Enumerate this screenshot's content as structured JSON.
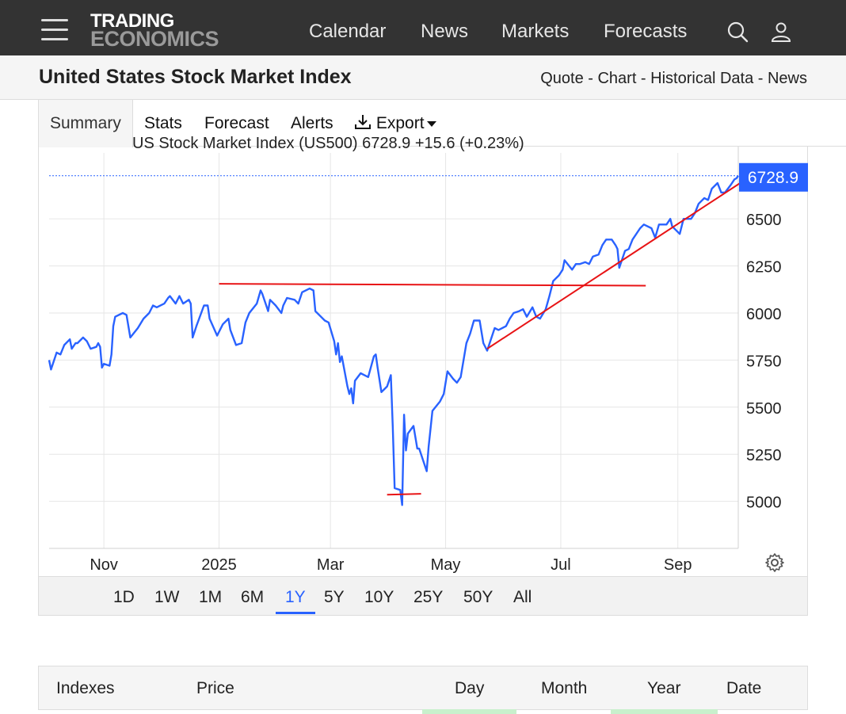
{
  "nav": {
    "logo_line1": "TRADING",
    "logo_line2": "ECONOMICS",
    "links": [
      "Calendar",
      "News",
      "Markets",
      "Forecasts"
    ],
    "icons": [
      "search-icon",
      "user-icon",
      "menu-icon"
    ]
  },
  "header": {
    "title": "United States Stock Market Index",
    "links": [
      "Quote",
      "Chart",
      "Historical Data",
      "News"
    ],
    "separator": " - "
  },
  "tabs": {
    "summary": "Summary",
    "stats": "Stats",
    "forecast": "Forecast",
    "alerts": "Alerts",
    "export": "Export"
  },
  "chart_data": {
    "type": "line",
    "legend_text": "US Stock Market Index (US500) 6728.9 +15.6 (+0.23%)",
    "last_value_label": "6728.9",
    "last_value": 6728.9,
    "ylim": [
      4750,
      6850
    ],
    "y_ticks": [
      5000,
      5250,
      5500,
      5750,
      6000,
      6250,
      6500
    ],
    "x_ticks": [
      {
        "label": "Nov",
        "date": "2024-11-01"
      },
      {
        "label": "2025",
        "date": "2025-01-01"
      },
      {
        "label": "Mar",
        "date": "2025-03-01"
      },
      {
        "label": "May",
        "date": "2025-05-01"
      },
      {
        "label": "Jul",
        "date": "2025-07-01"
      },
      {
        "label": "Sep",
        "date": "2025-09-01"
      }
    ],
    "xlim": [
      "2024-10-03",
      "2025-10-03"
    ],
    "grid": true,
    "colors": {
      "line": "#2962ff",
      "annotation": "#e81416",
      "badge": "#2962ff"
    },
    "series": [
      {
        "values": [
          [
            "2024-10-03",
            5750
          ],
          [
            "2024-10-04",
            5700
          ],
          [
            "2024-10-07",
            5790
          ],
          [
            "2024-10-09",
            5780
          ],
          [
            "2024-10-11",
            5830
          ],
          [
            "2024-10-14",
            5860
          ],
          [
            "2024-10-15",
            5810
          ],
          [
            "2024-10-17",
            5840
          ],
          [
            "2024-10-18",
            5840
          ],
          [
            "2024-10-21",
            5870
          ],
          [
            "2024-10-23",
            5850
          ],
          [
            "2024-10-25",
            5810
          ],
          [
            "2024-10-28",
            5820
          ],
          [
            "2024-10-29",
            5840
          ],
          [
            "2024-10-30",
            5820
          ],
          [
            "2024-10-31",
            5710
          ],
          [
            "2024-11-01",
            5730
          ],
          [
            "2024-11-04",
            5720
          ],
          [
            "2024-11-05",
            5780
          ],
          [
            "2024-11-06",
            5930
          ],
          [
            "2024-11-07",
            5980
          ],
          [
            "2024-11-11",
            6000
          ],
          [
            "2024-11-13",
            5990
          ],
          [
            "2024-11-15",
            5870
          ],
          [
            "2024-11-19",
            5920
          ],
          [
            "2024-11-22",
            5970
          ],
          [
            "2024-11-25",
            6000
          ],
          [
            "2024-11-27",
            6040
          ],
          [
            "2024-11-29",
            6030
          ],
          [
            "2024-12-03",
            6050
          ],
          [
            "2024-12-05",
            6080
          ],
          [
            "2024-12-06",
            6090
          ],
          [
            "2024-12-09",
            6050
          ],
          [
            "2024-12-11",
            6090
          ],
          [
            "2024-12-13",
            6050
          ],
          [
            "2024-12-16",
            6070
          ],
          [
            "2024-12-17",
            6050
          ],
          [
            "2024-12-18",
            5870
          ],
          [
            "2024-12-20",
            5930
          ],
          [
            "2024-12-24",
            6040
          ],
          [
            "2024-12-26",
            6040
          ],
          [
            "2024-12-27",
            5970
          ],
          [
            "2024-12-31",
            5880
          ],
          [
            "2025-01-03",
            5940
          ],
          [
            "2025-01-06",
            5970
          ],
          [
            "2025-01-07",
            5910
          ],
          [
            "2025-01-10",
            5830
          ],
          [
            "2025-01-13",
            5840
          ],
          [
            "2025-01-15",
            5950
          ],
          [
            "2025-01-17",
            6000
          ],
          [
            "2025-01-21",
            6050
          ],
          [
            "2025-01-23",
            6120
          ],
          [
            "2025-01-24",
            6100
          ],
          [
            "2025-01-27",
            6010
          ],
          [
            "2025-01-28",
            6070
          ],
          [
            "2025-01-31",
            6040
          ],
          [
            "2025-02-03",
            6000
          ],
          [
            "2025-02-04",
            6040
          ],
          [
            "2025-02-06",
            6080
          ],
          [
            "2025-02-10",
            6070
          ],
          [
            "2025-02-12",
            6050
          ],
          [
            "2025-02-14",
            6110
          ],
          [
            "2025-02-18",
            6130
          ],
          [
            "2025-02-20",
            6120
          ],
          [
            "2025-02-21",
            6010
          ],
          [
            "2025-02-24",
            5980
          ],
          [
            "2025-02-26",
            5960
          ],
          [
            "2025-02-28",
            5950
          ],
          [
            "2025-03-03",
            5850
          ],
          [
            "2025-03-04",
            5780
          ],
          [
            "2025-03-05",
            5840
          ],
          [
            "2025-03-06",
            5740
          ],
          [
            "2025-03-07",
            5770
          ],
          [
            "2025-03-10",
            5610
          ],
          [
            "2025-03-11",
            5570
          ],
          [
            "2025-03-12",
            5600
          ],
          [
            "2025-03-13",
            5520
          ],
          [
            "2025-03-14",
            5640
          ],
          [
            "2025-03-17",
            5680
          ],
          [
            "2025-03-19",
            5670
          ],
          [
            "2025-03-21",
            5660
          ],
          [
            "2025-03-24",
            5770
          ],
          [
            "2025-03-25",
            5780
          ],
          [
            "2025-03-26",
            5710
          ],
          [
            "2025-03-28",
            5580
          ],
          [
            "2025-03-31",
            5610
          ],
          [
            "2025-04-02",
            5670
          ],
          [
            "2025-04-03",
            5400
          ],
          [
            "2025-04-04",
            5070
          ],
          [
            "2025-04-07",
            5060
          ],
          [
            "2025-04-08",
            4980
          ],
          [
            "2025-04-09",
            5460
          ],
          [
            "2025-04-10",
            5270
          ],
          [
            "2025-04-11",
            5360
          ],
          [
            "2025-04-14",
            5400
          ],
          [
            "2025-04-16",
            5280
          ],
          [
            "2025-04-17",
            5280
          ],
          [
            "2025-04-21",
            5160
          ],
          [
            "2025-04-22",
            5290
          ],
          [
            "2025-04-24",
            5480
          ],
          [
            "2025-04-28",
            5530
          ],
          [
            "2025-04-30",
            5570
          ],
          [
            "2025-05-02",
            5690
          ],
          [
            "2025-05-05",
            5650
          ],
          [
            "2025-05-07",
            5630
          ],
          [
            "2025-05-09",
            5660
          ],
          [
            "2025-05-12",
            5840
          ],
          [
            "2025-05-14",
            5890
          ],
          [
            "2025-05-16",
            5960
          ],
          [
            "2025-05-19",
            5960
          ],
          [
            "2025-05-21",
            5840
          ],
          [
            "2025-05-23",
            5800
          ],
          [
            "2025-05-27",
            5920
          ],
          [
            "2025-05-29",
            5910
          ],
          [
            "2025-06-02",
            5930
          ],
          [
            "2025-06-04",
            5970
          ],
          [
            "2025-06-06",
            6000
          ],
          [
            "2025-06-09",
            6010
          ],
          [
            "2025-06-11",
            6020
          ],
          [
            "2025-06-13",
            5980
          ],
          [
            "2025-06-16",
            6030
          ],
          [
            "2025-06-18",
            5980
          ],
          [
            "2025-06-20",
            5970
          ],
          [
            "2025-06-23",
            6020
          ],
          [
            "2025-06-25",
            6090
          ],
          [
            "2025-06-27",
            6170
          ],
          [
            "2025-06-30",
            6200
          ],
          [
            "2025-07-02",
            6230
          ],
          [
            "2025-07-03",
            6280
          ],
          [
            "2025-07-07",
            6230
          ],
          [
            "2025-07-09",
            6260
          ],
          [
            "2025-07-11",
            6260
          ],
          [
            "2025-07-14",
            6270
          ],
          [
            "2025-07-16",
            6260
          ],
          [
            "2025-07-18",
            6300
          ],
          [
            "2025-07-21",
            6310
          ],
          [
            "2025-07-23",
            6360
          ],
          [
            "2025-07-25",
            6390
          ],
          [
            "2025-07-28",
            6390
          ],
          [
            "2025-07-30",
            6360
          ],
          [
            "2025-07-31",
            6340
          ],
          [
            "2025-08-01",
            6240
          ],
          [
            "2025-08-04",
            6330
          ],
          [
            "2025-08-06",
            6340
          ],
          [
            "2025-08-08",
            6390
          ],
          [
            "2025-08-12",
            6450
          ],
          [
            "2025-08-14",
            6470
          ],
          [
            "2025-08-18",
            6450
          ],
          [
            "2025-08-20",
            6400
          ],
          [
            "2025-08-22",
            6470
          ],
          [
            "2025-08-26",
            6470
          ],
          [
            "2025-08-28",
            6500
          ],
          [
            "2025-08-29",
            6460
          ],
          [
            "2025-09-02",
            6420
          ],
          [
            "2025-09-04",
            6500
          ],
          [
            "2025-09-08",
            6500
          ],
          [
            "2025-09-10",
            6530
          ],
          [
            "2025-09-12",
            6580
          ],
          [
            "2025-09-15",
            6610
          ],
          [
            "2025-09-17",
            6600
          ],
          [
            "2025-09-19",
            6660
          ],
          [
            "2025-09-22",
            6690
          ],
          [
            "2025-09-24",
            6640
          ],
          [
            "2025-09-26",
            6640
          ],
          [
            "2025-09-29",
            6680
          ],
          [
            "2025-10-01",
            6710
          ],
          [
            "2025-10-02",
            6715
          ],
          [
            "2025-10-03",
            6728.9
          ]
        ]
      }
    ],
    "annotations": [
      {
        "type": "line",
        "from": [
          "2025-01-01",
          6155
        ],
        "to": [
          "2025-08-15",
          6145
        ]
      },
      {
        "type": "line",
        "from": [
          "2025-05-23",
          5810
        ],
        "to": [
          "2025-10-04",
          6690
        ]
      },
      {
        "type": "line",
        "from": [
          "2025-03-31",
          5035
        ],
        "to": [
          "2025-04-18",
          5040
        ]
      }
    ]
  },
  "ranges": {
    "items": [
      "1D",
      "1W",
      "1M",
      "6M",
      "1Y",
      "5Y",
      "10Y",
      "25Y",
      "50Y",
      "All"
    ],
    "active": "1Y"
  },
  "table": {
    "headers": [
      "Indexes",
      "Price",
      "Day",
      "Month",
      "Year",
      "Date"
    ]
  }
}
